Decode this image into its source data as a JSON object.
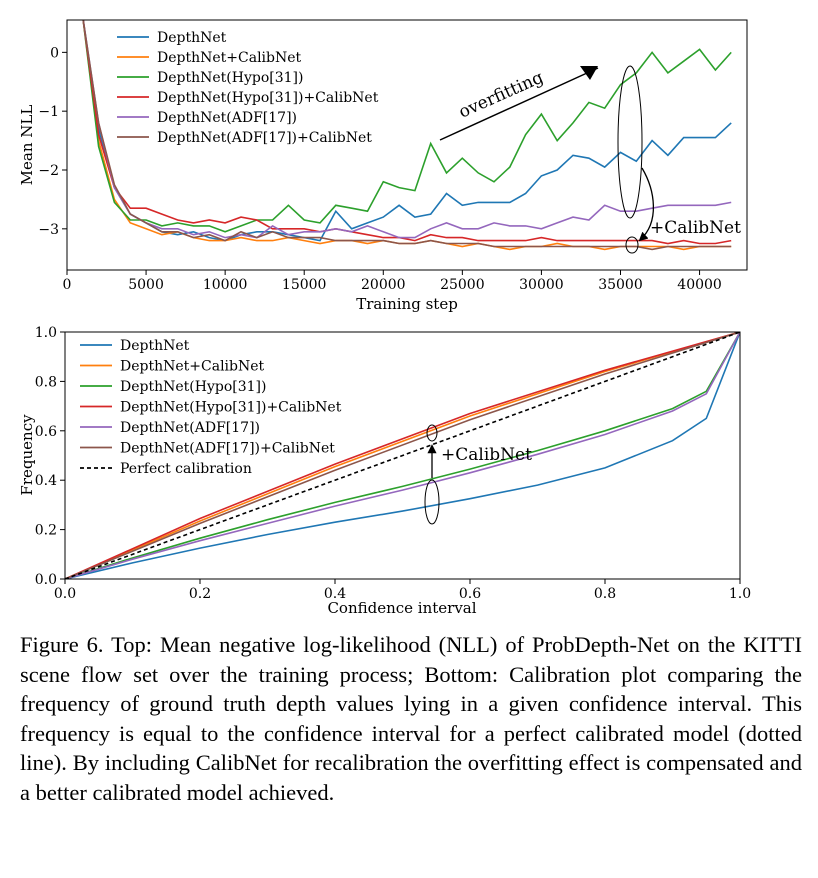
{
  "chart_data": [
    {
      "type": "line",
      "xlabel": "Training step",
      "ylabel": "Mean NLL",
      "xlim": [
        0,
        43000
      ],
      "ylim": [
        -3.7,
        0.55
      ],
      "xticks": [
        0,
        5000,
        10000,
        15000,
        20000,
        25000,
        30000,
        35000,
        40000
      ],
      "yticks": [
        0,
        -1,
        -2,
        -3
      ],
      "ytick_labels": [
        "0",
        "−1",
        "−2",
        "−3"
      ],
      "legend_position": "top-left",
      "grid": false,
      "annotations": [
        "overfitting",
        "+CalibNet"
      ],
      "series": [
        {
          "name": "DepthNet",
          "color": "#1f77b4",
          "x": [
            1000,
            2000,
            3000,
            4000,
            5000,
            6000,
            7000,
            8000,
            9000,
            10000,
            11000,
            12000,
            13000,
            14000,
            15000,
            16000,
            17000,
            18000,
            19000,
            20000,
            21000,
            22000,
            23000,
            24000,
            25000,
            26000,
            27000,
            28000,
            29000,
            30000,
            31000,
            32000,
            33000,
            34000,
            35000,
            36000,
            37000,
            38000,
            39000,
            40000,
            41000,
            42000
          ],
          "y": [
            0.6,
            -1.3,
            -2.3,
            -2.75,
            -2.9,
            -3.05,
            -3.1,
            -3.05,
            -3.15,
            -3.2,
            -3.1,
            -3.05,
            -3.05,
            -3.1,
            -3.15,
            -3.2,
            -2.7,
            -3.0,
            -2.9,
            -2.8,
            -2.6,
            -2.8,
            -2.75,
            -2.4,
            -2.6,
            -2.55,
            -2.55,
            -2.55,
            -2.4,
            -2.1,
            -2.0,
            -1.75,
            -1.8,
            -1.95,
            -1.7,
            -1.85,
            -1.5,
            -1.75,
            -1.45,
            -1.45,
            -1.45,
            -1.2
          ]
        },
        {
          "name": "DepthNet+CalibNet",
          "color": "#ff7f0e",
          "x": [
            1000,
            2000,
            3000,
            4000,
            5000,
            6000,
            7000,
            8000,
            9000,
            10000,
            11000,
            12000,
            13000,
            14000,
            15000,
            16000,
            17000,
            18000,
            19000,
            20000,
            21000,
            22000,
            23000,
            24000,
            25000,
            26000,
            27000,
            28000,
            29000,
            30000,
            31000,
            32000,
            33000,
            34000,
            35000,
            36000,
            37000,
            38000,
            39000,
            40000,
            41000,
            42000
          ],
          "y": [
            0.6,
            -1.5,
            -2.5,
            -2.9,
            -3.0,
            -3.1,
            -3.05,
            -3.15,
            -3.2,
            -3.2,
            -3.15,
            -3.2,
            -3.2,
            -3.15,
            -3.2,
            -3.25,
            -3.2,
            -3.2,
            -3.25,
            -3.2,
            -3.25,
            -3.25,
            -3.2,
            -3.25,
            -3.3,
            -3.25,
            -3.3,
            -3.35,
            -3.3,
            -3.3,
            -3.25,
            -3.3,
            -3.3,
            -3.35,
            -3.3,
            -3.3,
            -3.3,
            -3.3,
            -3.35,
            -3.3,
            -3.3,
            -3.3
          ]
        },
        {
          "name": "DepthNet(Hypo[31])",
          "color": "#2ca02c",
          "x": [
            1000,
            2000,
            3000,
            4000,
            5000,
            6000,
            7000,
            8000,
            9000,
            10000,
            11000,
            12000,
            13000,
            14000,
            15000,
            16000,
            17000,
            18000,
            19000,
            20000,
            21000,
            22000,
            23000,
            24000,
            25000,
            26000,
            27000,
            28000,
            29000,
            30000,
            31000,
            32000,
            33000,
            34000,
            35000,
            36000,
            37000,
            38000,
            39000,
            40000,
            41000,
            42000
          ],
          "y": [
            0.6,
            -1.6,
            -2.55,
            -2.85,
            -2.85,
            -2.95,
            -2.9,
            -2.95,
            -2.95,
            -3.05,
            -2.95,
            -2.85,
            -2.85,
            -2.6,
            -2.85,
            -2.9,
            -2.6,
            -2.65,
            -2.7,
            -2.2,
            -2.3,
            -2.35,
            -1.55,
            -2.05,
            -1.8,
            -2.05,
            -2.2,
            -1.95,
            -1.4,
            -1.05,
            -1.5,
            -1.2,
            -0.85,
            -0.95,
            -0.55,
            -0.35,
            0.0,
            -0.35,
            -0.15,
            0.05,
            -0.3,
            0.0
          ]
        },
        {
          "name": "DepthNet(Hypo[31])+CalibNet",
          "color": "#d62728",
          "x": [
            1000,
            2000,
            3000,
            4000,
            5000,
            6000,
            7000,
            8000,
            9000,
            10000,
            11000,
            12000,
            13000,
            14000,
            15000,
            16000,
            17000,
            18000,
            19000,
            20000,
            21000,
            22000,
            23000,
            24000,
            25000,
            26000,
            27000,
            28000,
            29000,
            30000,
            31000,
            32000,
            33000,
            34000,
            35000,
            36000,
            37000,
            38000,
            39000,
            40000,
            41000,
            42000
          ],
          "y": [
            0.6,
            -1.4,
            -2.3,
            -2.65,
            -2.65,
            -2.75,
            -2.85,
            -2.9,
            -2.85,
            -2.9,
            -2.8,
            -2.85,
            -3.0,
            -3.0,
            -3.0,
            -3.05,
            -3.0,
            -3.05,
            -3.1,
            -3.15,
            -3.15,
            -3.2,
            -3.1,
            -3.15,
            -3.15,
            -3.2,
            -3.2,
            -3.2,
            -3.2,
            -3.15,
            -3.2,
            -3.2,
            -3.2,
            -3.2,
            -3.2,
            -3.2,
            -3.2,
            -3.25,
            -3.2,
            -3.25,
            -3.25,
            -3.2
          ]
        },
        {
          "name": "DepthNet(ADF[17])",
          "color": "#9467bd",
          "x": [
            1000,
            2000,
            3000,
            4000,
            5000,
            6000,
            7000,
            8000,
            9000,
            10000,
            11000,
            12000,
            13000,
            14000,
            15000,
            16000,
            17000,
            18000,
            19000,
            20000,
            21000,
            22000,
            23000,
            24000,
            25000,
            26000,
            27000,
            28000,
            29000,
            30000,
            31000,
            32000,
            33000,
            34000,
            35000,
            36000,
            37000,
            38000,
            39000,
            40000,
            41000,
            42000
          ],
          "y": [
            0.6,
            -1.2,
            -2.3,
            -2.75,
            -2.9,
            -3.0,
            -3.0,
            -3.1,
            -3.05,
            -3.15,
            -3.1,
            -3.15,
            -2.95,
            -3.1,
            -3.05,
            -3.05,
            -3.0,
            -3.05,
            -2.95,
            -3.05,
            -3.15,
            -3.15,
            -3.0,
            -2.9,
            -3.0,
            -3.0,
            -2.9,
            -2.95,
            -2.95,
            -3.0,
            -2.9,
            -2.8,
            -2.85,
            -2.6,
            -2.7,
            -2.7,
            -2.65,
            -2.6,
            -2.6,
            -2.6,
            -2.6,
            -2.55
          ]
        },
        {
          "name": "DepthNet(ADF[17])+CalibNet",
          "color": "#8c564b",
          "x": [
            1000,
            2000,
            3000,
            4000,
            5000,
            6000,
            7000,
            8000,
            9000,
            10000,
            11000,
            12000,
            13000,
            14000,
            15000,
            16000,
            17000,
            18000,
            19000,
            20000,
            21000,
            22000,
            23000,
            24000,
            25000,
            26000,
            27000,
            28000,
            29000,
            30000,
            31000,
            32000,
            33000,
            34000,
            35000,
            36000,
            37000,
            38000,
            39000,
            40000,
            41000,
            42000
          ],
          "y": [
            0.6,
            -1.2,
            -2.25,
            -2.75,
            -2.9,
            -3.05,
            -3.05,
            -3.15,
            -3.1,
            -3.2,
            -3.05,
            -3.15,
            -3.05,
            -3.15,
            -3.15,
            -3.15,
            -3.2,
            -3.2,
            -3.2,
            -3.2,
            -3.25,
            -3.25,
            -3.2,
            -3.25,
            -3.25,
            -3.25,
            -3.3,
            -3.3,
            -3.3,
            -3.3,
            -3.3,
            -3.3,
            -3.3,
            -3.3,
            -3.3,
            -3.3,
            -3.35,
            -3.3,
            -3.3,
            -3.3,
            -3.3,
            -3.3
          ]
        }
      ]
    },
    {
      "type": "line",
      "xlabel": "Confidence interval",
      "ylabel": "Frequency",
      "xlim": [
        0,
        1
      ],
      "ylim": [
        0,
        1
      ],
      "xticks": [
        0.0,
        0.2,
        0.4,
        0.6,
        0.8,
        1.0
      ],
      "xtick_labels": [
        "0.0",
        "0.2",
        "0.4",
        "0.6",
        "0.8",
        "1.0"
      ],
      "yticks": [
        0.0,
        0.2,
        0.4,
        0.6,
        0.8,
        1.0
      ],
      "ytick_labels": [
        "0.0",
        "0.2",
        "0.4",
        "0.6",
        "0.8",
        "1.0"
      ],
      "legend_position": "top-left",
      "grid": false,
      "annotations": [
        "+CalibNet"
      ],
      "series": [
        {
          "name": "DepthNet",
          "color": "#1f77b4",
          "x": [
            0,
            0.1,
            0.2,
            0.3,
            0.4,
            0.5,
            0.6,
            0.7,
            0.8,
            0.9,
            0.95,
            1.0
          ],
          "y": [
            0,
            0.065,
            0.125,
            0.18,
            0.23,
            0.275,
            0.325,
            0.38,
            0.45,
            0.56,
            0.65,
            1.0
          ]
        },
        {
          "name": "DepthNet+CalibNet",
          "color": "#ff7f0e",
          "x": [
            0,
            0.2,
            0.4,
            0.6,
            0.8,
            1.0
          ],
          "y": [
            0,
            0.235,
            0.455,
            0.66,
            0.84,
            1.0
          ]
        },
        {
          "name": "DepthNet(Hypo[31])",
          "color": "#2ca02c",
          "x": [
            0,
            0.1,
            0.2,
            0.3,
            0.4,
            0.5,
            0.6,
            0.7,
            0.8,
            0.9,
            0.95,
            1.0
          ],
          "y": [
            0,
            0.085,
            0.165,
            0.24,
            0.31,
            0.375,
            0.445,
            0.52,
            0.6,
            0.69,
            0.76,
            1.0
          ]
        },
        {
          "name": "DepthNet(Hypo[31])+CalibNet",
          "color": "#d62728",
          "x": [
            0,
            0.2,
            0.4,
            0.6,
            0.8,
            1.0
          ],
          "y": [
            0,
            0.245,
            0.465,
            0.67,
            0.845,
            1.0
          ]
        },
        {
          "name": "DepthNet(ADF[17])",
          "color": "#9467bd",
          "x": [
            0,
            0.1,
            0.2,
            0.3,
            0.4,
            0.5,
            0.6,
            0.7,
            0.8,
            0.9,
            0.95,
            1.0
          ],
          "y": [
            0,
            0.08,
            0.155,
            0.225,
            0.295,
            0.36,
            0.43,
            0.505,
            0.585,
            0.68,
            0.75,
            1.0
          ]
        },
        {
          "name": "DepthNet(ADF[17])+CalibNet",
          "color": "#8c564b",
          "x": [
            0,
            0.2,
            0.4,
            0.6,
            0.8,
            1.0
          ],
          "y": [
            0,
            0.225,
            0.44,
            0.645,
            0.83,
            1.0
          ]
        },
        {
          "name": "Perfect calibration",
          "color": "#000000",
          "dashed": true,
          "x": [
            0,
            1
          ],
          "y": [
            0,
            1
          ]
        }
      ]
    }
  ],
  "caption": "Figure 6. Top: Mean negative log-likelihood (NLL) of ProbDepth-Net on the KITTI scene flow set over the training process; Bottom: Calibration plot comparing the frequency of ground truth depth values lying in a given confidence interval. This frequency is equal to the confidence interval for a perfect calibrated model (dotted line). By including CalibNet for recalibration the overfitting effect is compensated and a better calibrated model achieved."
}
